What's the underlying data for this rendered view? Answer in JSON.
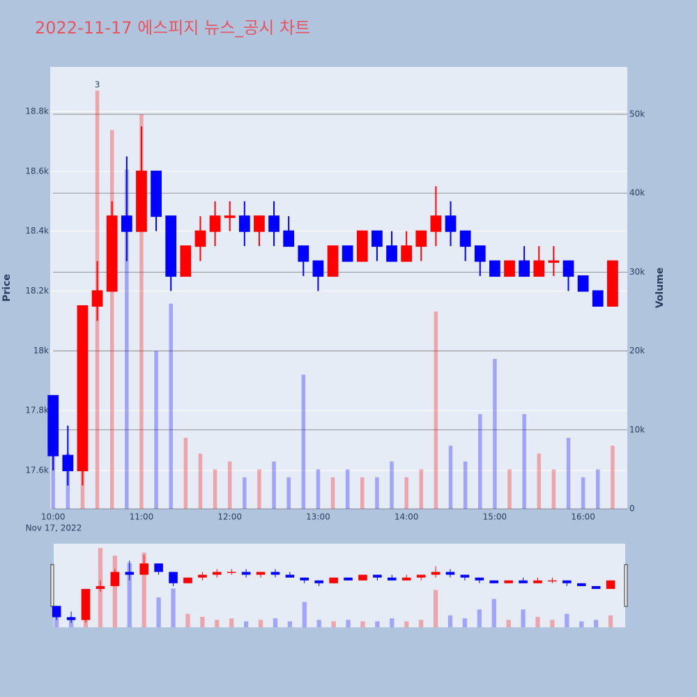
{
  "chart_data": {
    "type": "candlestick",
    "title": "2022-11-17 에스피지 뉴스_공시 차트",
    "y_label": "Price",
    "y2_label": "Volume",
    "x_date_label": "Nov 17, 2022",
    "annotation": "3",
    "increasing_color": "#ff0000",
    "decreasing_color": "#0000ff",
    "x": [
      "2022-11-17 10:00",
      "2022-11-17 10:10",
      "2022-11-17 10:20",
      "2022-11-17 10:30",
      "2022-11-17 10:40",
      "2022-11-17 10:50",
      "2022-11-17 11:00",
      "2022-11-17 11:10",
      "2022-11-17 11:20",
      "2022-11-17 11:30",
      "2022-11-17 11:40",
      "2022-11-17 11:50",
      "2022-11-17 12:00",
      "2022-11-17 12:10",
      "2022-11-17 12:20",
      "2022-11-17 12:30",
      "2022-11-17 12:40",
      "2022-11-17 12:50",
      "2022-11-17 13:00",
      "2022-11-17 13:10",
      "2022-11-17 13:20",
      "2022-11-17 13:30",
      "2022-11-17 13:40",
      "2022-11-17 13:50",
      "2022-11-17 14:00",
      "2022-11-17 14:10",
      "2022-11-17 14:20",
      "2022-11-17 14:30",
      "2022-11-17 14:40",
      "2022-11-17 14:50",
      "2022-11-17 15:00",
      "2022-11-17 15:10",
      "2022-11-17 15:20",
      "2022-11-17 15:30",
      "2022-11-17 15:40",
      "2022-11-17 15:50",
      "2022-11-17 16:00",
      "2022-11-17 16:10",
      "2022-11-17 16:20"
    ],
    "open": [
      17850,
      17650,
      17600,
      18150,
      18200,
      18450,
      18400,
      18600,
      18450,
      18250,
      18350,
      18400,
      18450,
      18450,
      18400,
      18450,
      18400,
      18350,
      18300,
      18250,
      18350,
      18300,
      18400,
      18350,
      18300,
      18350,
      18400,
      18450,
      18400,
      18350,
      18300,
      18250,
      18300,
      18250,
      18300,
      18300,
      18250,
      18200,
      18150
    ],
    "high": [
      17850,
      17750,
      18150,
      18300,
      18500,
      18650,
      18750,
      18600,
      18450,
      18350,
      18450,
      18500,
      18500,
      18500,
      18450,
      18500,
      18450,
      18350,
      18300,
      18350,
      18350,
      18400,
      18400,
      18400,
      18400,
      18400,
      18550,
      18500,
      18400,
      18350,
      18300,
      18300,
      18350,
      18350,
      18350,
      18300,
      18250,
      18200,
      18300
    ],
    "low": [
      17600,
      17550,
      17550,
      18100,
      18200,
      18300,
      18400,
      18400,
      18200,
      18250,
      18300,
      18350,
      18400,
      18350,
      18350,
      18350,
      18350,
      18250,
      18200,
      18250,
      18300,
      18300,
      18300,
      18300,
      18300,
      18300,
      18350,
      18350,
      18300,
      18250,
      18250,
      18250,
      18250,
      18250,
      18250,
      18200,
      18200,
      18150,
      18150
    ],
    "close": [
      17650,
      17600,
      18150,
      18200,
      18450,
      18400,
      18600,
      18450,
      18250,
      18350,
      18400,
      18450,
      18450,
      18400,
      18450,
      18400,
      18350,
      18300,
      18250,
      18350,
      18300,
      18400,
      18350,
      18300,
      18350,
      18400,
      18450,
      18400,
      18350,
      18300,
      18250,
      18300,
      18250,
      18300,
      18300,
      18250,
      18200,
      18150,
      18300
    ],
    "volume": [
      9000,
      7000,
      20000,
      53000,
      48000,
      43000,
      50000,
      20000,
      26000,
      9000,
      7000,
      5000,
      6000,
      4000,
      5000,
      6000,
      4000,
      17000,
      5000,
      4000,
      5000,
      4000,
      4000,
      6000,
      4000,
      5000,
      25000,
      8000,
      6000,
      12000,
      19000,
      5000,
      12000,
      7000,
      5000,
      9000,
      4000,
      5000,
      8000
    ],
    "xlim": [
      "2022-11-17 09:58",
      "2022-11-17 16:30"
    ],
    "xticks": [
      {
        "value": "2022-11-17 10:00",
        "label": "10:00"
      },
      {
        "value": "2022-11-17 11:00",
        "label": "11:00"
      },
      {
        "value": "2022-11-17 12:00",
        "label": "12:00"
      },
      {
        "value": "2022-11-17 13:00",
        "label": "13:00"
      },
      {
        "value": "2022-11-17 14:00",
        "label": "14:00"
      },
      {
        "value": "2022-11-17 15:00",
        "label": "15:00"
      },
      {
        "value": "2022-11-17 16:00",
        "label": "16:00"
      }
    ],
    "ylim": [
      17472,
      18949
    ],
    "yticks": [
      {
        "value": 17600,
        "label": "17.6k"
      },
      {
        "value": 17800,
        "label": "17.8k"
      },
      {
        "value": 18000,
        "label": "18k"
      },
      {
        "value": 18200,
        "label": "18.2k"
      },
      {
        "value": 18400,
        "label": "18.4k"
      },
      {
        "value": 18600,
        "label": "18.6k"
      },
      {
        "value": 18800,
        "label": "18.8k"
      }
    ],
    "y2lim": [
      0,
      56000
    ],
    "y2ticks": [
      0,
      {
        "value": 10000,
        "label": "10k"
      },
      {
        "value": 20000,
        "label": "20k"
      },
      {
        "value": 30000,
        "label": "30k"
      },
      {
        "value": 40000,
        "label": "40k"
      },
      {
        "value": 50000,
        "label": "50k"
      }
    ],
    "grid": true,
    "rangeslider": true
  }
}
